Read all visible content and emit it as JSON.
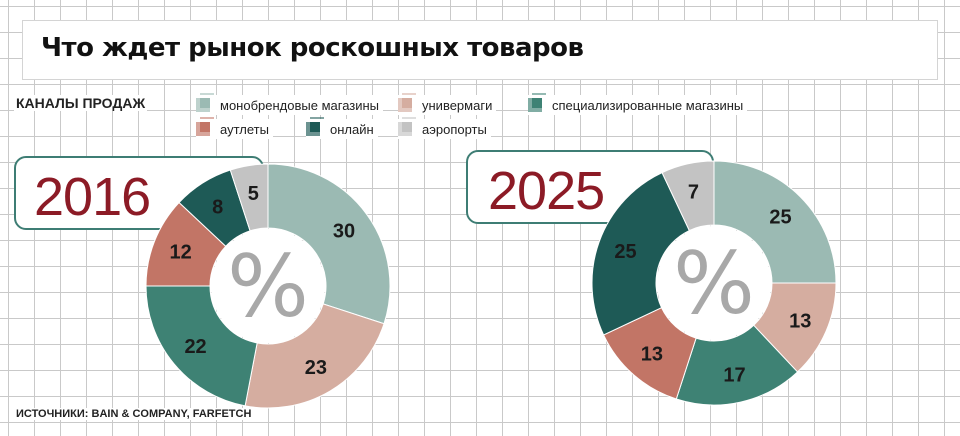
{
  "title": "Что ждет рынок роскошных товаров",
  "legend_title": "КАНАЛЫ ПРОДАЖ",
  "source": "ИСТОЧНИКИ: BAIN & COMPANY, FARFETCH",
  "center_symbol": "%",
  "colors": {
    "monobrand": "#9bbab3",
    "department": "#d5ada0",
    "specialized": "#3e8274",
    "outlets": "#c27566",
    "online": "#1e5a56",
    "airports": "#c3c3c3"
  },
  "chart_data": [
    {
      "type": "pie",
      "title": "2016",
      "series": [
        {
          "name": "монобрендовые магазины",
          "color_key": "monobrand",
          "value": 30
        },
        {
          "name": "универмаги",
          "color_key": "department",
          "value": 23
        },
        {
          "name": "специализированные магазины",
          "color_key": "specialized",
          "value": 22
        },
        {
          "name": "аутлеты",
          "color_key": "outlets",
          "value": 12
        },
        {
          "name": "онлайн",
          "color_key": "online",
          "value": 8
        },
        {
          "name": "аэропорты",
          "color_key": "airports",
          "value": 5
        }
      ]
    },
    {
      "type": "pie",
      "title": "2025",
      "series": [
        {
          "name": "монобрендовые магазины",
          "color_key": "monobrand",
          "value": 25
        },
        {
          "name": "универмаги",
          "color_key": "department",
          "value": 13
        },
        {
          "name": "специализированные магазины",
          "color_key": "specialized",
          "value": 17
        },
        {
          "name": "аутлеты",
          "color_key": "outlets",
          "value": 13
        },
        {
          "name": "онлайн",
          "color_key": "online",
          "value": 25
        },
        {
          "name": "аэропорты",
          "color_key": "airports",
          "value": 7
        }
      ]
    }
  ],
  "legend": [
    {
      "label": "монобрендовые магазины",
      "color_key": "monobrand"
    },
    {
      "label": "универмаги",
      "color_key": "department"
    },
    {
      "label": "специализированные магазины",
      "color_key": "specialized"
    },
    {
      "label": "аутлеты",
      "color_key": "outlets"
    },
    {
      "label": "онлайн",
      "color_key": "online"
    },
    {
      "label": "аэропорты",
      "color_key": "airports"
    }
  ]
}
